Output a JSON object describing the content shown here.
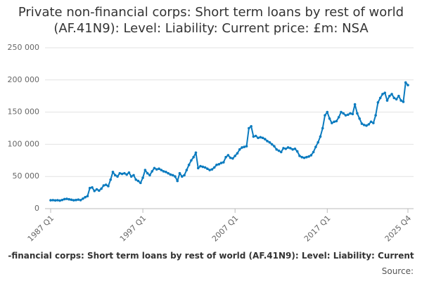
{
  "chart_data": {
    "type": "line",
    "title": "Private non-financial corps: Short term loans by rest of world (AF.41N9): Level: Liability: Current price: £m: NSA",
    "footer_title": "-financial corps: Short term loans by rest of world (AF.41N9): Level: Liability: Current",
    "footer_source": "Source:",
    "color": "#0b7bbf",
    "grid": true,
    "ylim": [
      0,
      250000
    ],
    "yticks": [
      0,
      {
        "value": 50000,
        "label": "50 000"
      },
      {
        "value": 100000,
        "label": "100 000"
      },
      {
        "value": 150000,
        "label": "150 000"
      },
      {
        "value": 200000,
        "label": "200 000"
      },
      {
        "value": 250000,
        "label": "250 000"
      }
    ],
    "categories": [
      "1987 Q1",
      null,
      null,
      null,
      null,
      null,
      null,
      null,
      null,
      null,
      null,
      null,
      null,
      null,
      null,
      null,
      null,
      null,
      null,
      null,
      null,
      null,
      null,
      null,
      null,
      null,
      null,
      null,
      null,
      null,
      null,
      null,
      null,
      null,
      null,
      null,
      null,
      null,
      null,
      null,
      "1997 Q1",
      null,
      null,
      null,
      null,
      null,
      null,
      null,
      null,
      null,
      null,
      null,
      null,
      null,
      null,
      null,
      null,
      null,
      null,
      null,
      null,
      null,
      null,
      null,
      null,
      null,
      null,
      null,
      null,
      null,
      null,
      null,
      null,
      null,
      null,
      null,
      null,
      null,
      null,
      null,
      "2007 Q1",
      null,
      null,
      null,
      null,
      null,
      null,
      null,
      null,
      null,
      null,
      null,
      null,
      null,
      null,
      null,
      null,
      null,
      null,
      null,
      null,
      null,
      null,
      null,
      null,
      null,
      null,
      null,
      null,
      null,
      null,
      null,
      null,
      null,
      null,
      null,
      null,
      null,
      null,
      null,
      "2017 Q1",
      null,
      null,
      null,
      null,
      null,
      null,
      null,
      null,
      null,
      null,
      null,
      null,
      null,
      null,
      null,
      null,
      null,
      null,
      null,
      null,
      null,
      null,
      null,
      null,
      null,
      null,
      null,
      null,
      null,
      null,
      null,
      null,
      null,
      null,
      "2025 Q4"
    ],
    "values": [
      13000,
      13200,
      12800,
      13100,
      12500,
      13500,
      14800,
      15200,
      14500,
      13800,
      13000,
      13400,
      14000,
      13200,
      15500,
      17800,
      19500,
      32000,
      33000,
      27500,
      30000,
      28000,
      31000,
      36000,
      37000,
      35000,
      45000,
      57000,
      52000,
      50000,
      55000,
      54000,
      55000,
      53000,
      56000,
      50000,
      52000,
      45000,
      43000,
      40000,
      48000,
      60000,
      55000,
      52000,
      58000,
      63000,
      61000,
      62000,
      60000,
      58000,
      57000,
      55000,
      53000,
      52000,
      50000,
      43000,
      55000,
      50000,
      52000,
      60000,
      68000,
      75000,
      80000,
      87000,
      63000,
      66000,
      65000,
      64000,
      62000,
      60000,
      61000,
      64000,
      68000,
      69000,
      71000,
      72000,
      80000,
      83000,
      79000,
      78000,
      82000,
      86000,
      92000,
      95000,
      96000,
      97000,
      125000,
      128000,
      112000,
      113000,
      110000,
      111000,
      110000,
      108000,
      105000,
      103000,
      100000,
      97000,
      92000,
      90000,
      88000,
      94000,
      93000,
      95000,
      94000,
      92000,
      93000,
      89000,
      82000,
      80000,
      79000,
      80000,
      81000,
      83000,
      88000,
      96000,
      103000,
      112000,
      125000,
      145000,
      150000,
      140000,
      133000,
      135000,
      136000,
      142000,
      150000,
      148000,
      145000,
      146000,
      148000,
      147000,
      162000,
      148000,
      140000,
      132000,
      130000,
      129000,
      131000,
      135000,
      133000,
      145000,
      165000,
      172000,
      178000,
      180000,
      168000,
      175000,
      178000,
      172000,
      170000,
      175000,
      168000,
      166000,
      196000,
      192000
    ]
  }
}
